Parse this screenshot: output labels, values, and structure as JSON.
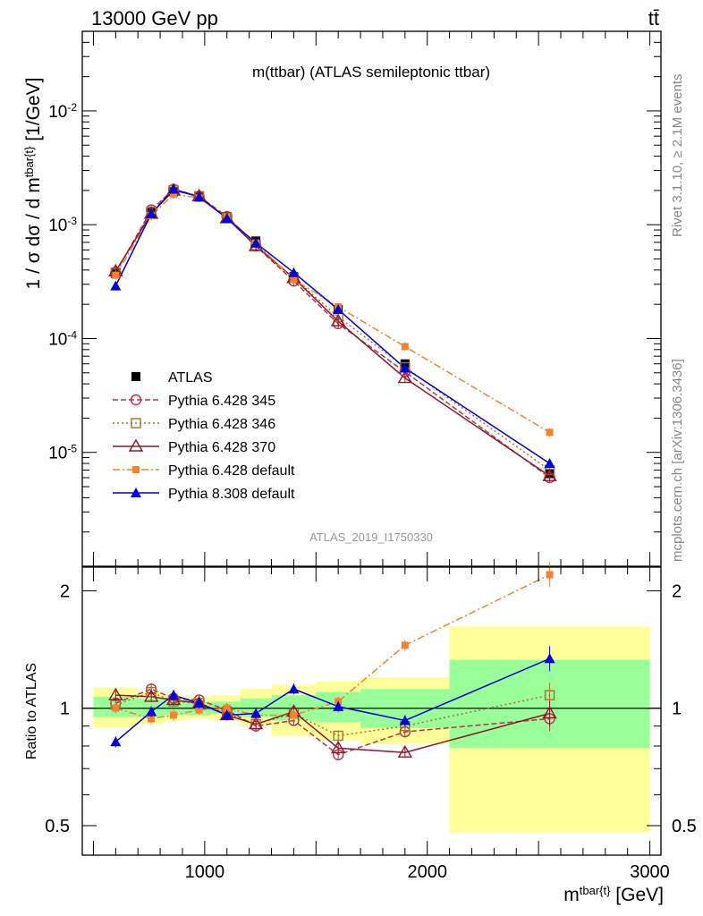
{
  "header": {
    "left": "13000 GeV pp",
    "right": "tt̄"
  },
  "side_labels": {
    "rivet": "Rivet 3.1.10, ≥ 2.1M events",
    "mcplots": "mcplots.cern.ch [arXiv:1306.3436]"
  },
  "watermark": "ATLAS_2019_I1750330",
  "chart_data": [
    {
      "type": "line",
      "title": "m(ttbar) (ATLAS semileptonic ttbar)",
      "ylabel": "1 / σ dσ / d m^{tbar{t}} [1/GeV]",
      "xlabel": "",
      "xlim": [
        450,
        3050
      ],
      "ylim": [
        1e-06,
        0.05
      ],
      "yscale": "log",
      "ytick_labels": [
        "10^{-5}",
        "10^{-4}",
        "10^{-3}",
        "10^{-2}"
      ],
      "legend_position": "lower-left",
      "x": [
        600,
        760,
        860,
        975,
        1100,
        1230,
        1400,
        1600,
        1900,
        2550
      ],
      "series": [
        {
          "name": "ATLAS",
          "color": "#000000",
          "marker": "square-filled",
          "values": [
            0.00037,
            0.00128,
            0.00195,
            0.00175,
            0.00118,
            0.00072,
            0.00035,
            0.00018,
            6e-05,
            6.5e-06
          ]
        },
        {
          "name": "Pythia 6.428 345",
          "color": "#b5364a",
          "marker": "circle-open",
          "dash": "6,3",
          "values": [
            0.00038,
            0.00135,
            0.00205,
            0.00178,
            0.00118,
            0.00065,
            0.00032,
            0.000135,
            5.1e-05,
            6e-06
          ]
        },
        {
          "name": "Pythia 6.428 346",
          "color": "#a9722e",
          "marker": "square-open",
          "dash": "2,3",
          "values": [
            0.00038,
            0.0013,
            0.00202,
            0.00178,
            0.00115,
            0.00066,
            0.00034,
            0.000155,
            5.6e-05,
            7e-06
          ]
        },
        {
          "name": "Pythia 6.428 370",
          "color": "#8b1a2b",
          "marker": "triangle-open",
          "dash": "",
          "values": [
            0.00039,
            0.00125,
            0.002,
            0.00178,
            0.00114,
            0.00065,
            0.00034,
            0.000142,
            4.5e-05,
            6.2e-06
          ]
        },
        {
          "name": "Pythia 6.428 default",
          "color": "#f58231",
          "marker": "square-filled-small",
          "dash": "8,3,2,3",
          "values": [
            0.00036,
            0.0012,
            0.00185,
            0.00172,
            0.00117,
            0.00069,
            0.00033,
            0.00019,
            8.5e-05,
            1.5e-05
          ]
        },
        {
          "name": "Pythia 8.308 default",
          "color": "#0000dd",
          "marker": "triangle-filled",
          "dash": "",
          "values": [
            0.00029,
            0.00125,
            0.00205,
            0.00175,
            0.00114,
            0.00069,
            0.00038,
            0.00018,
            5.5e-05,
            8e-06
          ]
        }
      ]
    },
    {
      "type": "line",
      "title": "",
      "ylabel": "Ratio to ATLAS",
      "xlabel": "m^{tbar{t}} [GeV]",
      "xlim": [
        450,
        3050
      ],
      "ylim": [
        0.42,
        2.3
      ],
      "yscale": "log",
      "ytick_labels": [
        "0.5",
        "1",
        "2"
      ],
      "xtick_labels": [
        "1000",
        "2000",
        "3000"
      ],
      "reference_line": 1,
      "bin_edges": [
        500,
        700,
        820,
        920,
        1030,
        1160,
        1300,
        1500,
        1700,
        2100,
        3000
      ],
      "band_inner": [
        [
          0.95,
          1.07
        ],
        [
          0.95,
          1.06
        ],
        [
          0.96,
          1.05
        ],
        [
          0.96,
          1.04
        ],
        [
          0.97,
          1.04
        ],
        [
          0.95,
          1.06
        ],
        [
          0.93,
          1.08
        ],
        [
          0.92,
          1.1
        ],
        [
          0.89,
          1.12
        ],
        [
          0.79,
          1.33
        ]
      ],
      "band_outer": [
        [
          0.89,
          1.13
        ],
        [
          0.91,
          1.1
        ],
        [
          0.93,
          1.08
        ],
        [
          0.94,
          1.07
        ],
        [
          0.93,
          1.08
        ],
        [
          0.9,
          1.12
        ],
        [
          0.85,
          1.15
        ],
        [
          0.83,
          1.17
        ],
        [
          0.81,
          1.2
        ],
        [
          0.48,
          1.62
        ]
      ],
      "x": [
        600,
        760,
        860,
        975,
        1100,
        1230,
        1400,
        1600,
        1900,
        2550
      ],
      "series": [
        {
          "name": "Pythia 6.428 345",
          "values": [
            1.03,
            1.12,
            1.06,
            1.05,
            0.99,
            0.9,
            0.93,
            0.76,
            0.87,
            0.94
          ]
        },
        {
          "name": "Pythia 6.428 346",
          "values": [
            1.02,
            1.1,
            1.04,
            1.03,
            0.97,
            0.91,
            0.97,
            0.85,
            0.9,
            1.08
          ]
        },
        {
          "name": "Pythia 6.428 370",
          "values": [
            1.08,
            1.07,
            1.05,
            1.03,
            0.96,
            0.91,
            0.98,
            0.79,
            0.77,
            0.97
          ]
        },
        {
          "name": "Pythia 6.428 default",
          "values": [
            1.0,
            0.94,
            0.96,
            0.99,
            1.0,
            0.96,
            0.96,
            1.04,
            1.45,
            2.2
          ]
        },
        {
          "name": "Pythia 8.308 default",
          "values": [
            0.82,
            0.98,
            1.08,
            1.03,
            0.96,
            0.97,
            1.12,
            1.01,
            0.93,
            1.34
          ]
        }
      ]
    }
  ]
}
